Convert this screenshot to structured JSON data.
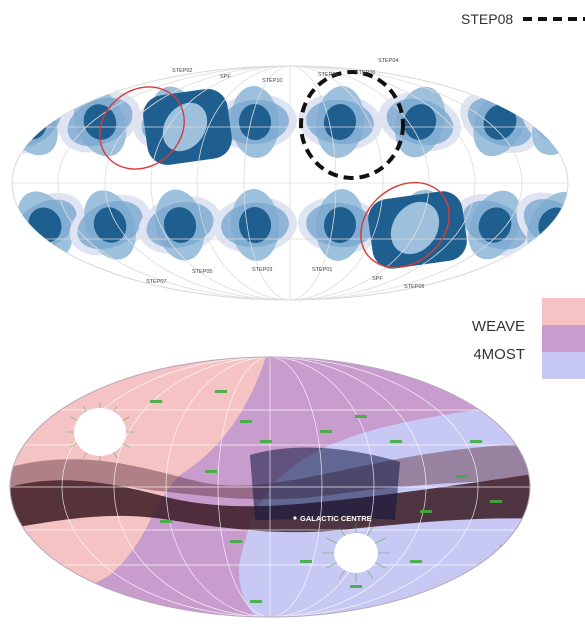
{
  "top_map": {
    "legend_label": "STEP08",
    "field_labels": [
      "STEP02",
      "SPF",
      "STEP10",
      "STEP08",
      "STEP06",
      "STEP04",
      "STEP07",
      "STEP05",
      "STEP03",
      "STEP01",
      "SPF",
      "STEP09"
    ]
  },
  "side_legend": {
    "items": [
      {
        "label": "",
        "color": "#f5c3c3"
      },
      {
        "label": "WEAVE",
        "color": "#c89ccd"
      },
      {
        "label": "4MOST",
        "color": "#c8c8f5"
      }
    ]
  },
  "bottom_map": {
    "center_label": "GALACTIC CENTRE",
    "colors": {
      "weave": "#f5c3c3",
      "overlap": "#c89ccd",
      "fourmost": "#c8c8f5",
      "dust": "#3a1a22",
      "grid": "#ffffff",
      "stars": "#3fae3f"
    }
  }
}
